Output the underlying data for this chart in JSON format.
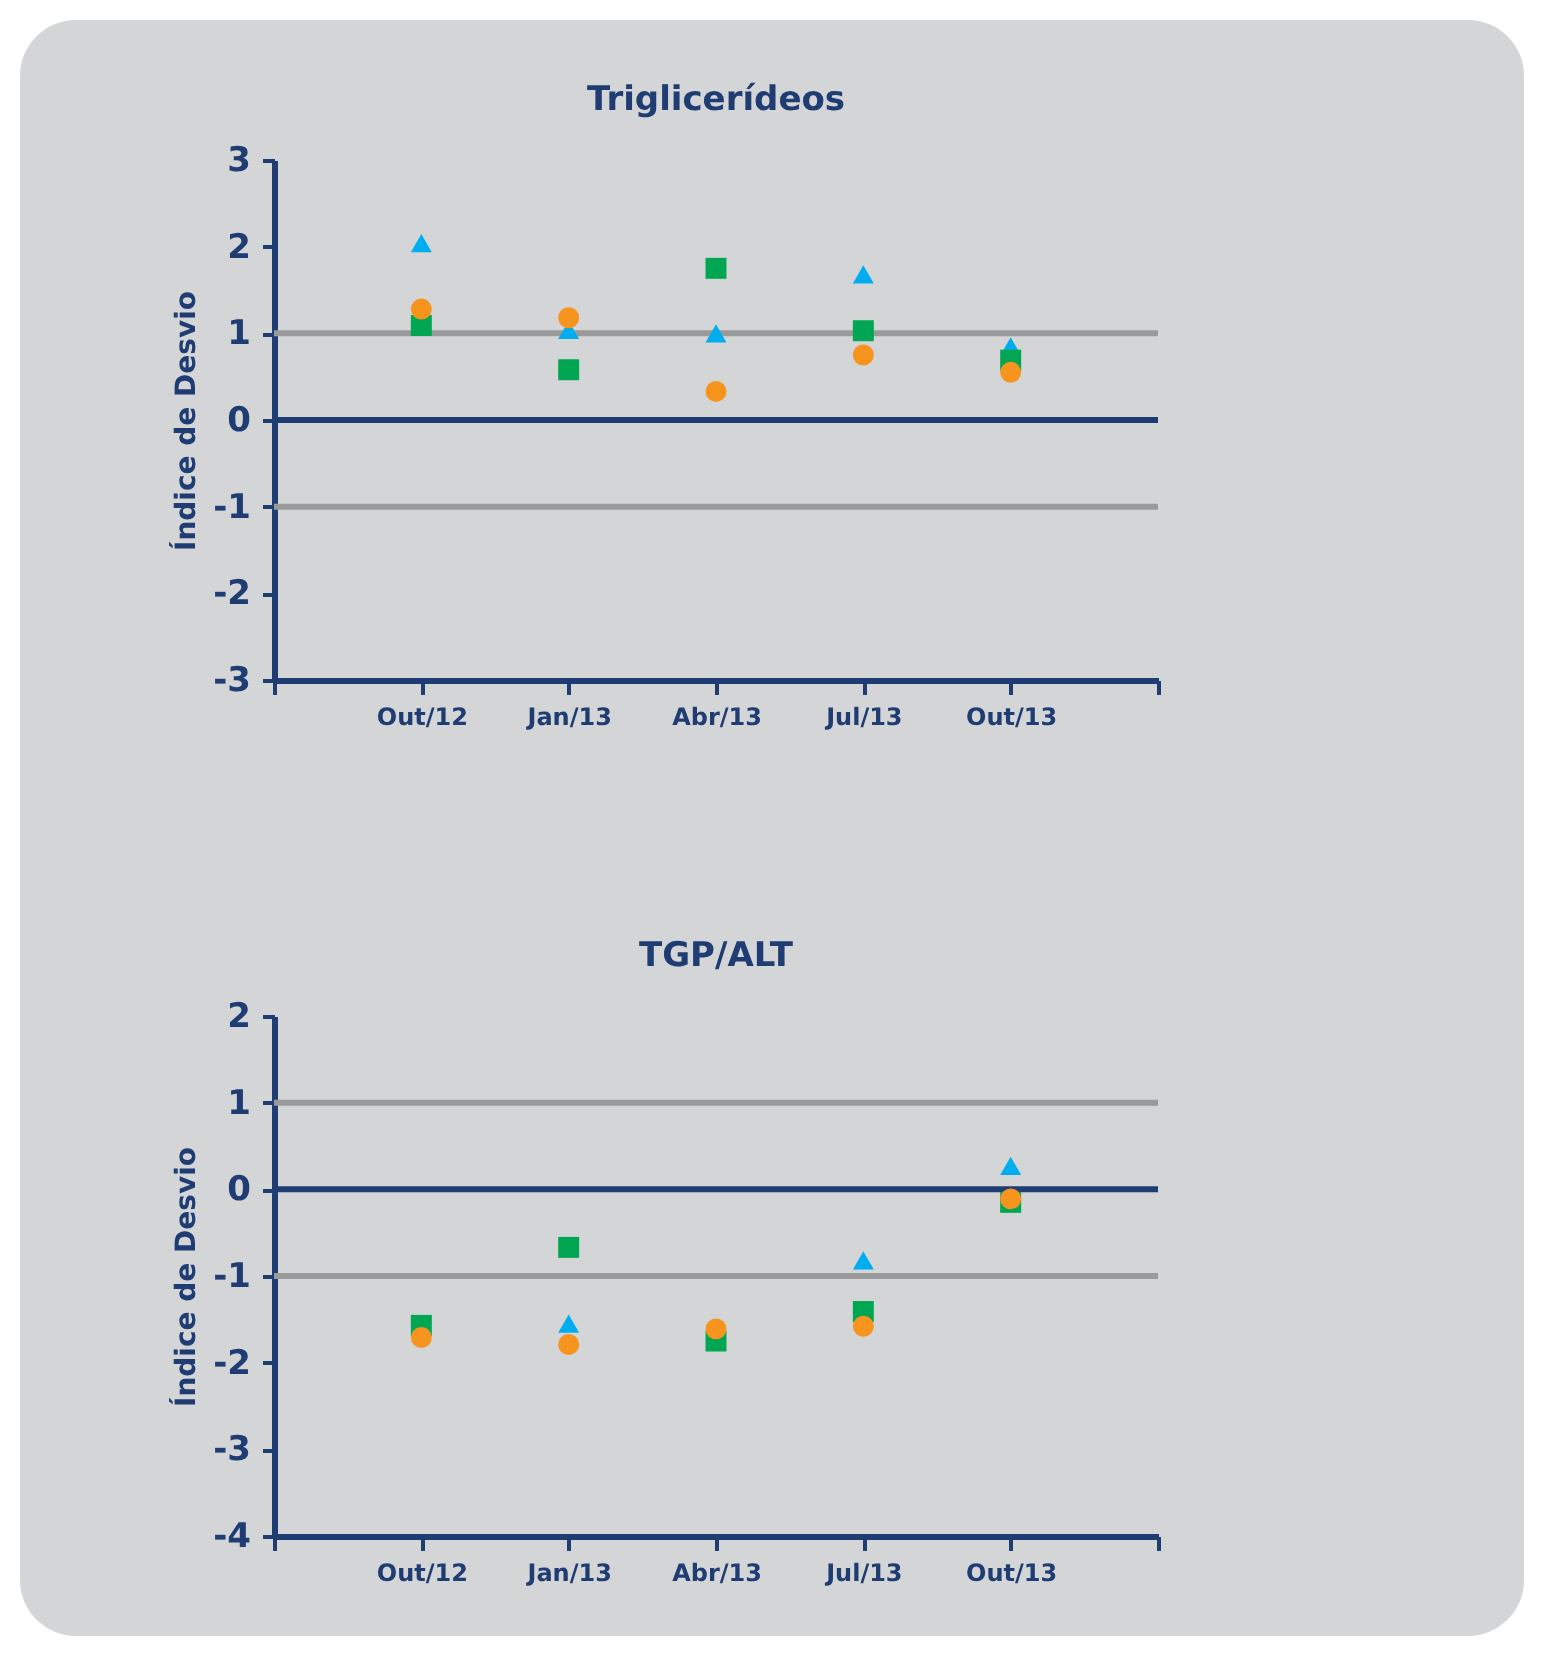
{
  "chart_data": [
    {
      "type": "scatter",
      "title": "Triglicerídeos",
      "ylabel": "Índice de Desvio",
      "categories": [
        null,
        "Out/12",
        "Jan/13",
        "Abr/13",
        "Jul/13",
        "Out/13",
        null
      ],
      "ylim": [
        -3,
        3
      ],
      "yticks": [
        -3,
        -2,
        -1,
        0,
        1,
        2,
        3
      ],
      "ref_lines": [
        {
          "axis": "y",
          "value": 1,
          "color": "#9a9a9a"
        },
        {
          "axis": "y",
          "value": -1,
          "color": "#9a9a9a"
        },
        {
          "axis": "y",
          "value": 0,
          "color": "#1f3c73"
        }
      ],
      "series": [
        {
          "color": "#00aeef",
          "marker": "triangle",
          "values": [
            null,
            2.04,
            1.04,
            1.0,
            1.68,
            0.85,
            null
          ]
        },
        {
          "color": "#00a651",
          "marker": "square",
          "values": [
            null,
            1.09,
            0.58,
            1.75,
            1.03,
            0.69,
            null
          ]
        },
        {
          "color": "#f7941d",
          "marker": "circle",
          "values": [
            null,
            1.28,
            1.18,
            0.33,
            0.75,
            0.55,
            null
          ]
        }
      ]
    },
    {
      "type": "scatter",
      "title": "TGP/ALT",
      "ylabel": "Índice de Desvio",
      "categories": [
        null,
        "Out/12",
        "Jan/13",
        "Abr/13",
        "Jul/13",
        "Out/13",
        null
      ],
      "ylim": [
        -4,
        2
      ],
      "yticks": [
        -4,
        -3,
        -2,
        -1,
        0,
        1,
        2
      ],
      "ref_lines": [
        {
          "axis": "y",
          "value": 1,
          "color": "#9a9a9a"
        },
        {
          "axis": "y",
          "value": -1,
          "color": "#9a9a9a"
        },
        {
          "axis": "y",
          "value": 0,
          "color": "#1f3c73"
        }
      ],
      "series": [
        {
          "color": "#00aeef",
          "marker": "triangle",
          "values": [
            null,
            null,
            -1.55,
            null,
            -0.82,
            0.27,
            null
          ]
        },
        {
          "color": "#00a651",
          "marker": "square",
          "values": [
            null,
            -1.57,
            -0.67,
            -1.75,
            -1.41,
            -0.15,
            null
          ]
        },
        {
          "color": "#f7941d",
          "marker": "circle",
          "values": [
            null,
            -1.71,
            -1.79,
            -1.61,
            -1.58,
            -0.11,
            null
          ]
        }
      ]
    }
  ]
}
